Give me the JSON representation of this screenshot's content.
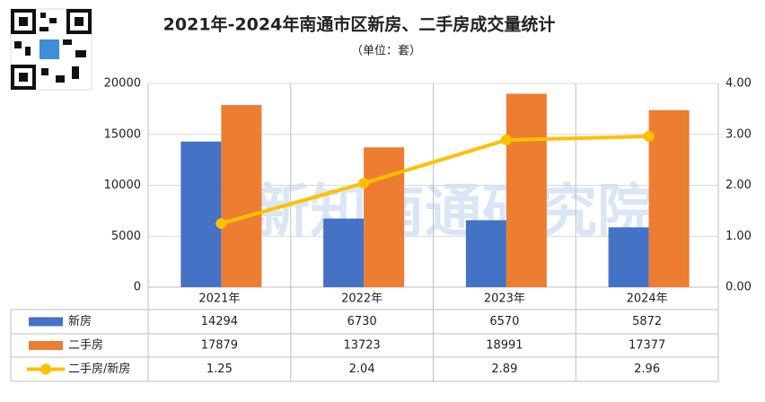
{
  "chart_data": {
    "type": "bar-line",
    "title": "2021年-2024年南通市区新房、二手房成交量统计",
    "subtitle": "（单位：套）",
    "watermark": "新知南通研究院",
    "categories": [
      "2021年",
      "2022年",
      "2023年",
      "2024年"
    ],
    "series": [
      {
        "name": "新房",
        "color": "#4472c4",
        "type": "bar",
        "values": [
          14294,
          6730,
          6570,
          5872
        ]
      },
      {
        "name": "二手房",
        "color": "#ed7d31",
        "type": "bar",
        "values": [
          17879,
          13723,
          18991,
          17377
        ]
      },
      {
        "name": "二手房/新房",
        "color": "#ffc000",
        "type": "line",
        "axis": "y2",
        "values": [
          1.25,
          2.04,
          2.89,
          2.96
        ]
      }
    ],
    "ylim": [
      0,
      20000
    ],
    "yticks": [
      0,
      5000,
      10000,
      15000,
      20000
    ],
    "y2lim": [
      0,
      4
    ],
    "y2ticks": [
      {
        "value": 0,
        "label": "0.00"
      },
      {
        "value": 1,
        "label": "1.00"
      },
      {
        "value": 2,
        "label": "2.00"
      },
      {
        "value": 3,
        "label": "3.00"
      },
      {
        "value": 4,
        "label": "4.00"
      }
    ],
    "grid": true,
    "data_table": true
  }
}
